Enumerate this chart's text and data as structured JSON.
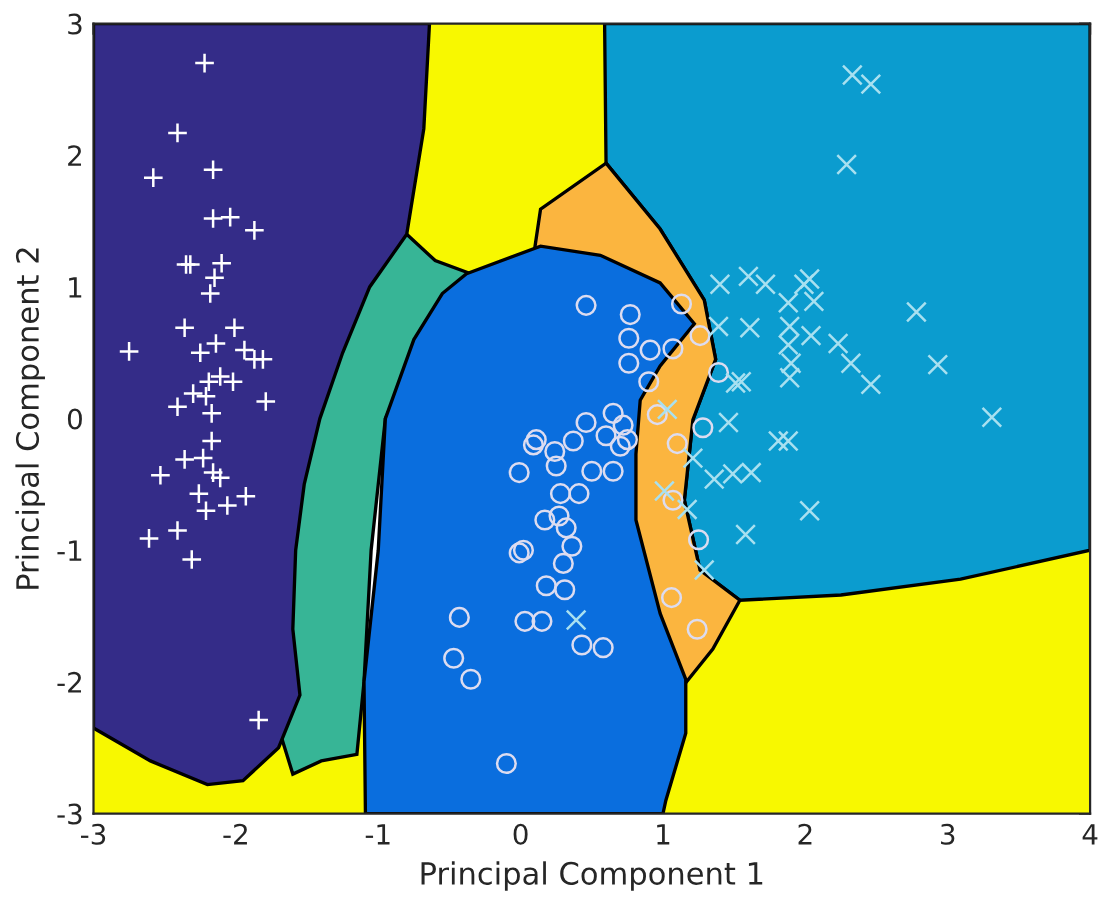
{
  "chart_data": {
    "type": "scatter",
    "xlabel": "Principal Component 1",
    "ylabel": "Principal Component 2",
    "xlim": [
      -3,
      4
    ],
    "ylim": [
      -3,
      3
    ],
    "xticks": [
      -3,
      -2,
      -1,
      0,
      1,
      2,
      3,
      4
    ],
    "yticks": [
      -3,
      -2,
      -1,
      0,
      1,
      2,
      3
    ],
    "series": [
      {
        "color": "#ffffff",
        "marker": "plus",
        "x": [
          -2.22,
          -2.41,
          -2.58,
          -2.16,
          -2.16,
          -2.04,
          -1.87,
          -2.35,
          -2.32,
          -2.1,
          -2.15,
          -2.18,
          -2.36,
          -2.01,
          -2.75,
          -2.25,
          -2.14,
          -1.94,
          -1.87,
          -1.81,
          -2.19,
          -2.11,
          -2.02,
          -2.3,
          -2.41,
          -2.21,
          -1.79,
          -2.17,
          -2.17,
          -2.36,
          -2.23,
          -2.53,
          -2.16,
          -2.11,
          -2.26,
          -2.21,
          -2.06,
          -1.93,
          -2.61,
          -2.41,
          -2.31,
          -1.84
        ],
        "values": [
          2.7,
          2.17,
          1.83,
          1.89,
          1.52,
          1.53,
          1.43,
          1.17,
          1.17,
          1.18,
          1.07,
          0.95,
          0.69,
          0.69,
          0.51,
          0.5,
          0.57,
          0.52,
          0.45,
          0.45,
          0.28,
          0.32,
          0.28,
          0.19,
          0.09,
          0.17,
          0.13,
          0.04,
          -0.17,
          -0.31,
          -0.3,
          -0.43,
          -0.41,
          -0.45,
          -0.57,
          -0.7,
          -0.66,
          -0.59,
          -0.91,
          -0.85,
          -1.07,
          -2.29
        ]
      },
      {
        "color": "#dcdcf0",
        "marker": "circle",
        "x": [
          0.46,
          0.77,
          1.13,
          0.76,
          0.91,
          1.07,
          1.26,
          0.76,
          0.9,
          1.39,
          0.46,
          0.65,
          0.72,
          0.6,
          0.7,
          0.75,
          0.11,
          0.09,
          0.24,
          0.37,
          0.25,
          0.5,
          0.65,
          -0.01,
          0.96,
          1.1,
          1.28,
          0.28,
          0.41,
          0.17,
          0.27,
          0.32,
          0.36,
          -0.01,
          0.02,
          0.3,
          0.18,
          0.31,
          1.07,
          1.25,
          1.06,
          1.24,
          -0.43,
          0.03,
          0.15,
          -0.47,
          -0.35,
          0.43,
          0.58,
          -0.1
        ],
        "values": [
          0.86,
          0.79,
          0.87,
          0.61,
          0.52,
          0.53,
          0.63,
          0.42,
          0.28,
          0.35,
          -0.03,
          0.04,
          -0.05,
          -0.13,
          -0.21,
          -0.16,
          -0.16,
          -0.2,
          -0.25,
          -0.17,
          -0.36,
          -0.4,
          -0.4,
          -0.41,
          0.03,
          -0.19,
          -0.07,
          -0.57,
          -0.57,
          -0.77,
          -0.74,
          -0.83,
          -0.97,
          -1.02,
          -1.0,
          -1.1,
          -1.27,
          -1.3,
          -0.62,
          -0.92,
          -1.36,
          -1.6,
          -1.51,
          -1.54,
          -1.54,
          -1.82,
          -1.98,
          -1.72,
          -1.74,
          -2.62
        ]
      },
      {
        "color": "#a8e0f0",
        "marker": "cross",
        "x": [
          2.33,
          2.46,
          2.29,
          1.4,
          1.6,
          1.72,
          1.99,
          2.03,
          2.06,
          1.88,
          1.61,
          1.89,
          2.04,
          1.88,
          2.23,
          2.32,
          1.9,
          1.89,
          2.46,
          2.93,
          2.78,
          3.31,
          1.51,
          1.55,
          1.46,
          1.81,
          1.88,
          1.36,
          1.49,
          1.62,
          2.03,
          1.58,
          1.29,
          1.21,
          1.03,
          1.39,
          1.01,
          1.17,
          0.39
        ],
        "values": [
          2.61,
          2.54,
          1.93,
          1.02,
          1.08,
          1.02,
          1.02,
          1.06,
          0.89,
          0.88,
          0.69,
          0.7,
          0.63,
          0.56,
          0.57,
          0.42,
          0.42,
          0.31,
          0.26,
          0.41,
          0.81,
          0.01,
          0.27,
          0.28,
          -0.03,
          -0.17,
          -0.17,
          -0.46,
          -0.42,
          -0.41,
          -0.7,
          -0.88,
          -1.15,
          -0.3,
          0.07,
          0.7,
          -0.55,
          -0.69,
          -1.53
        ]
      }
    ]
  }
}
